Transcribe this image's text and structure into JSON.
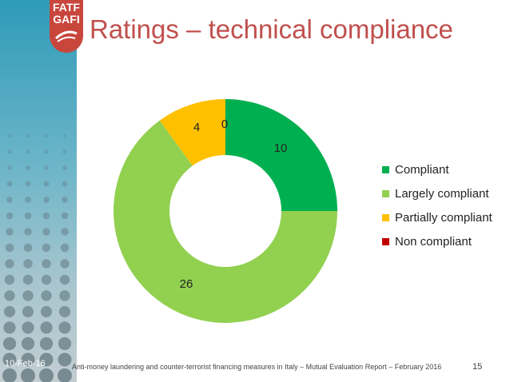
{
  "slide": {
    "title": "Ratings – technical compliance",
    "date": "10-Feb-16",
    "footer": "Anti-money laundering and counter-terrorist financing measures in Italy – Mutual Evaluation Report – February 2016",
    "page_number": "15",
    "logo_line1": "FATF",
    "logo_line2": "GAFI"
  },
  "colors": {
    "title": "#c0504d",
    "compliant": "#00b050",
    "largely_compliant": "#92d050",
    "partially_compliant": "#ffc000",
    "non_compliant": "#c00000"
  },
  "chart_data": {
    "type": "pie",
    "donut": true,
    "title": "",
    "categories": [
      "Compliant",
      "Largely compliant",
      "Partially compliant",
      "Non compliant"
    ],
    "values": [
      10,
      26,
      4,
      0
    ],
    "colors": [
      "#00b050",
      "#92d050",
      "#ffc000",
      "#c00000"
    ],
    "data_labels": [
      "10",
      "26",
      "4",
      "0"
    ],
    "legend_position": "right"
  }
}
